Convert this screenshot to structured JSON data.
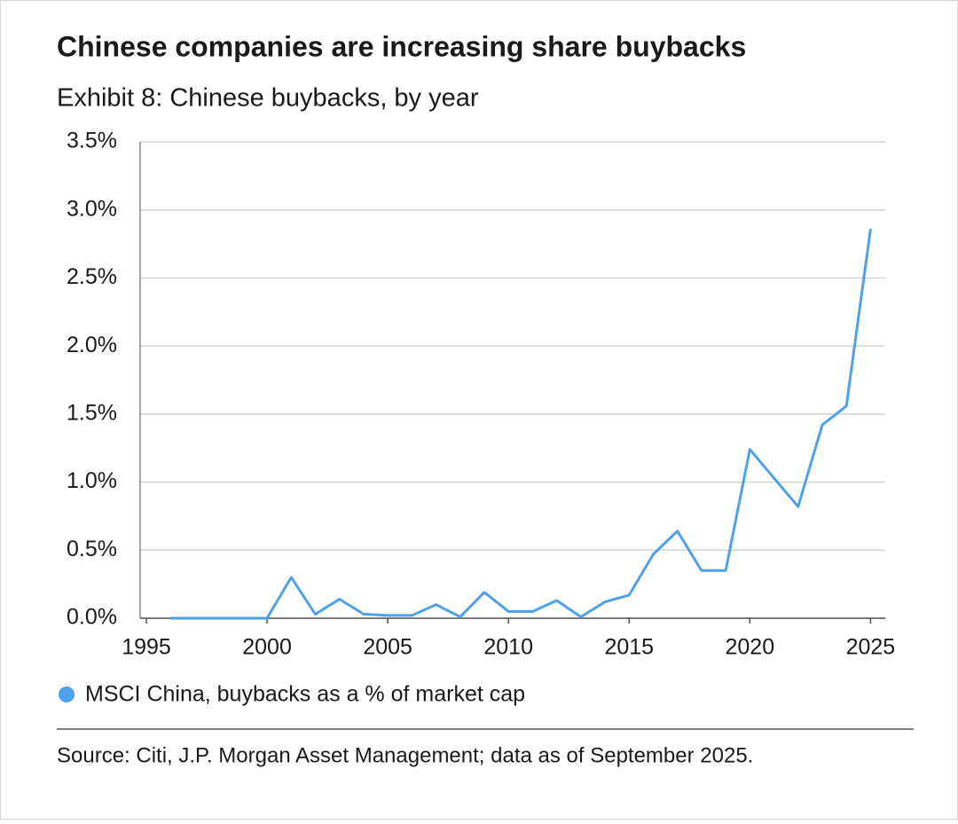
{
  "chart_data": {
    "type": "line",
    "title": "Chinese companies are increasing share buybacks",
    "subtitle": "Exhibit 8: Chinese buybacks, by year",
    "x": [
      1996,
      1997,
      1998,
      1999,
      2000,
      2001,
      2002,
      2003,
      2004,
      2005,
      2006,
      2007,
      2008,
      2009,
      2010,
      2011,
      2012,
      2013,
      2014,
      2015,
      2016,
      2017,
      2018,
      2019,
      2020,
      2021,
      2022,
      2023,
      2024,
      2025
    ],
    "series": [
      {
        "name": "MSCI China, buybacks as a % of market cap",
        "color": "#4ea0e8",
        "values": [
          0,
          0,
          0,
          0,
          0,
          0.3,
          0.03,
          0.14,
          0.03,
          0.02,
          0.02,
          0.1,
          0.01,
          0.19,
          0.05,
          0.05,
          0.13,
          0.01,
          0.12,
          0.17,
          0.47,
          0.64,
          0.35,
          0.35,
          1.24,
          1.03,
          0.82,
          1.42,
          1.56,
          2.86
        ]
      }
    ],
    "xlim": [
      1995,
      2025.5
    ],
    "xticks": [
      1995,
      2000,
      2005,
      2010,
      2015,
      2020,
      2025
    ],
    "ylim": [
      0,
      3.5
    ],
    "yticks": [
      {
        "value": 0,
        "label": "0.0%"
      },
      {
        "value": 0.5,
        "label": "0.5%"
      },
      {
        "value": 1,
        "label": "1.0%"
      },
      {
        "value": 1.5,
        "label": "1.5%"
      },
      {
        "value": 2,
        "label": "2.0%"
      },
      {
        "value": 2.5,
        "label": "2.5%"
      },
      {
        "value": 3,
        "label": "3.0%"
      },
      {
        "value": 3.5,
        "label": "3.5%"
      }
    ],
    "grid": true,
    "source": "Source: Citi, J.P. Morgan Asset Management; data as of September 2025."
  }
}
